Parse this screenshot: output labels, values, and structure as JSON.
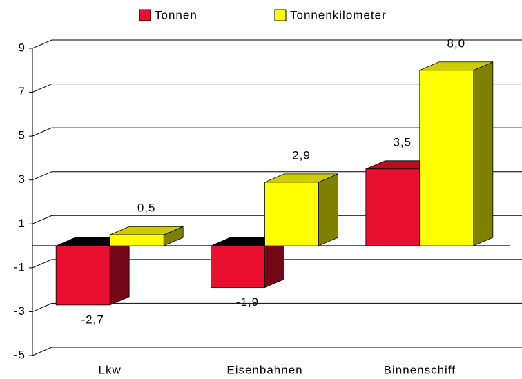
{
  "chart_data": {
    "type": "bar3d",
    "categories": [
      "Lkw",
      "Eisenbahnen",
      "Binnenschiff"
    ],
    "series": [
      {
        "name": "Tonnen",
        "color": "#e8102e",
        "values": [
          -2.7,
          -1.9,
          3.5
        ],
        "value_labels": [
          "-2,7",
          "-1,9",
          "3,5"
        ]
      },
      {
        "name": "Tonnenkilometer",
        "color": "#ffff00",
        "values": [
          0.5,
          2.9,
          8.0
        ],
        "value_labels": [
          "0,5",
          "2,9",
          "8,0"
        ]
      }
    ],
    "ylim": [
      -5,
      9
    ],
    "yticks": [
      9,
      7,
      5,
      3,
      1,
      -1,
      -3,
      -5
    ],
    "grid": true,
    "legend": "top"
  }
}
